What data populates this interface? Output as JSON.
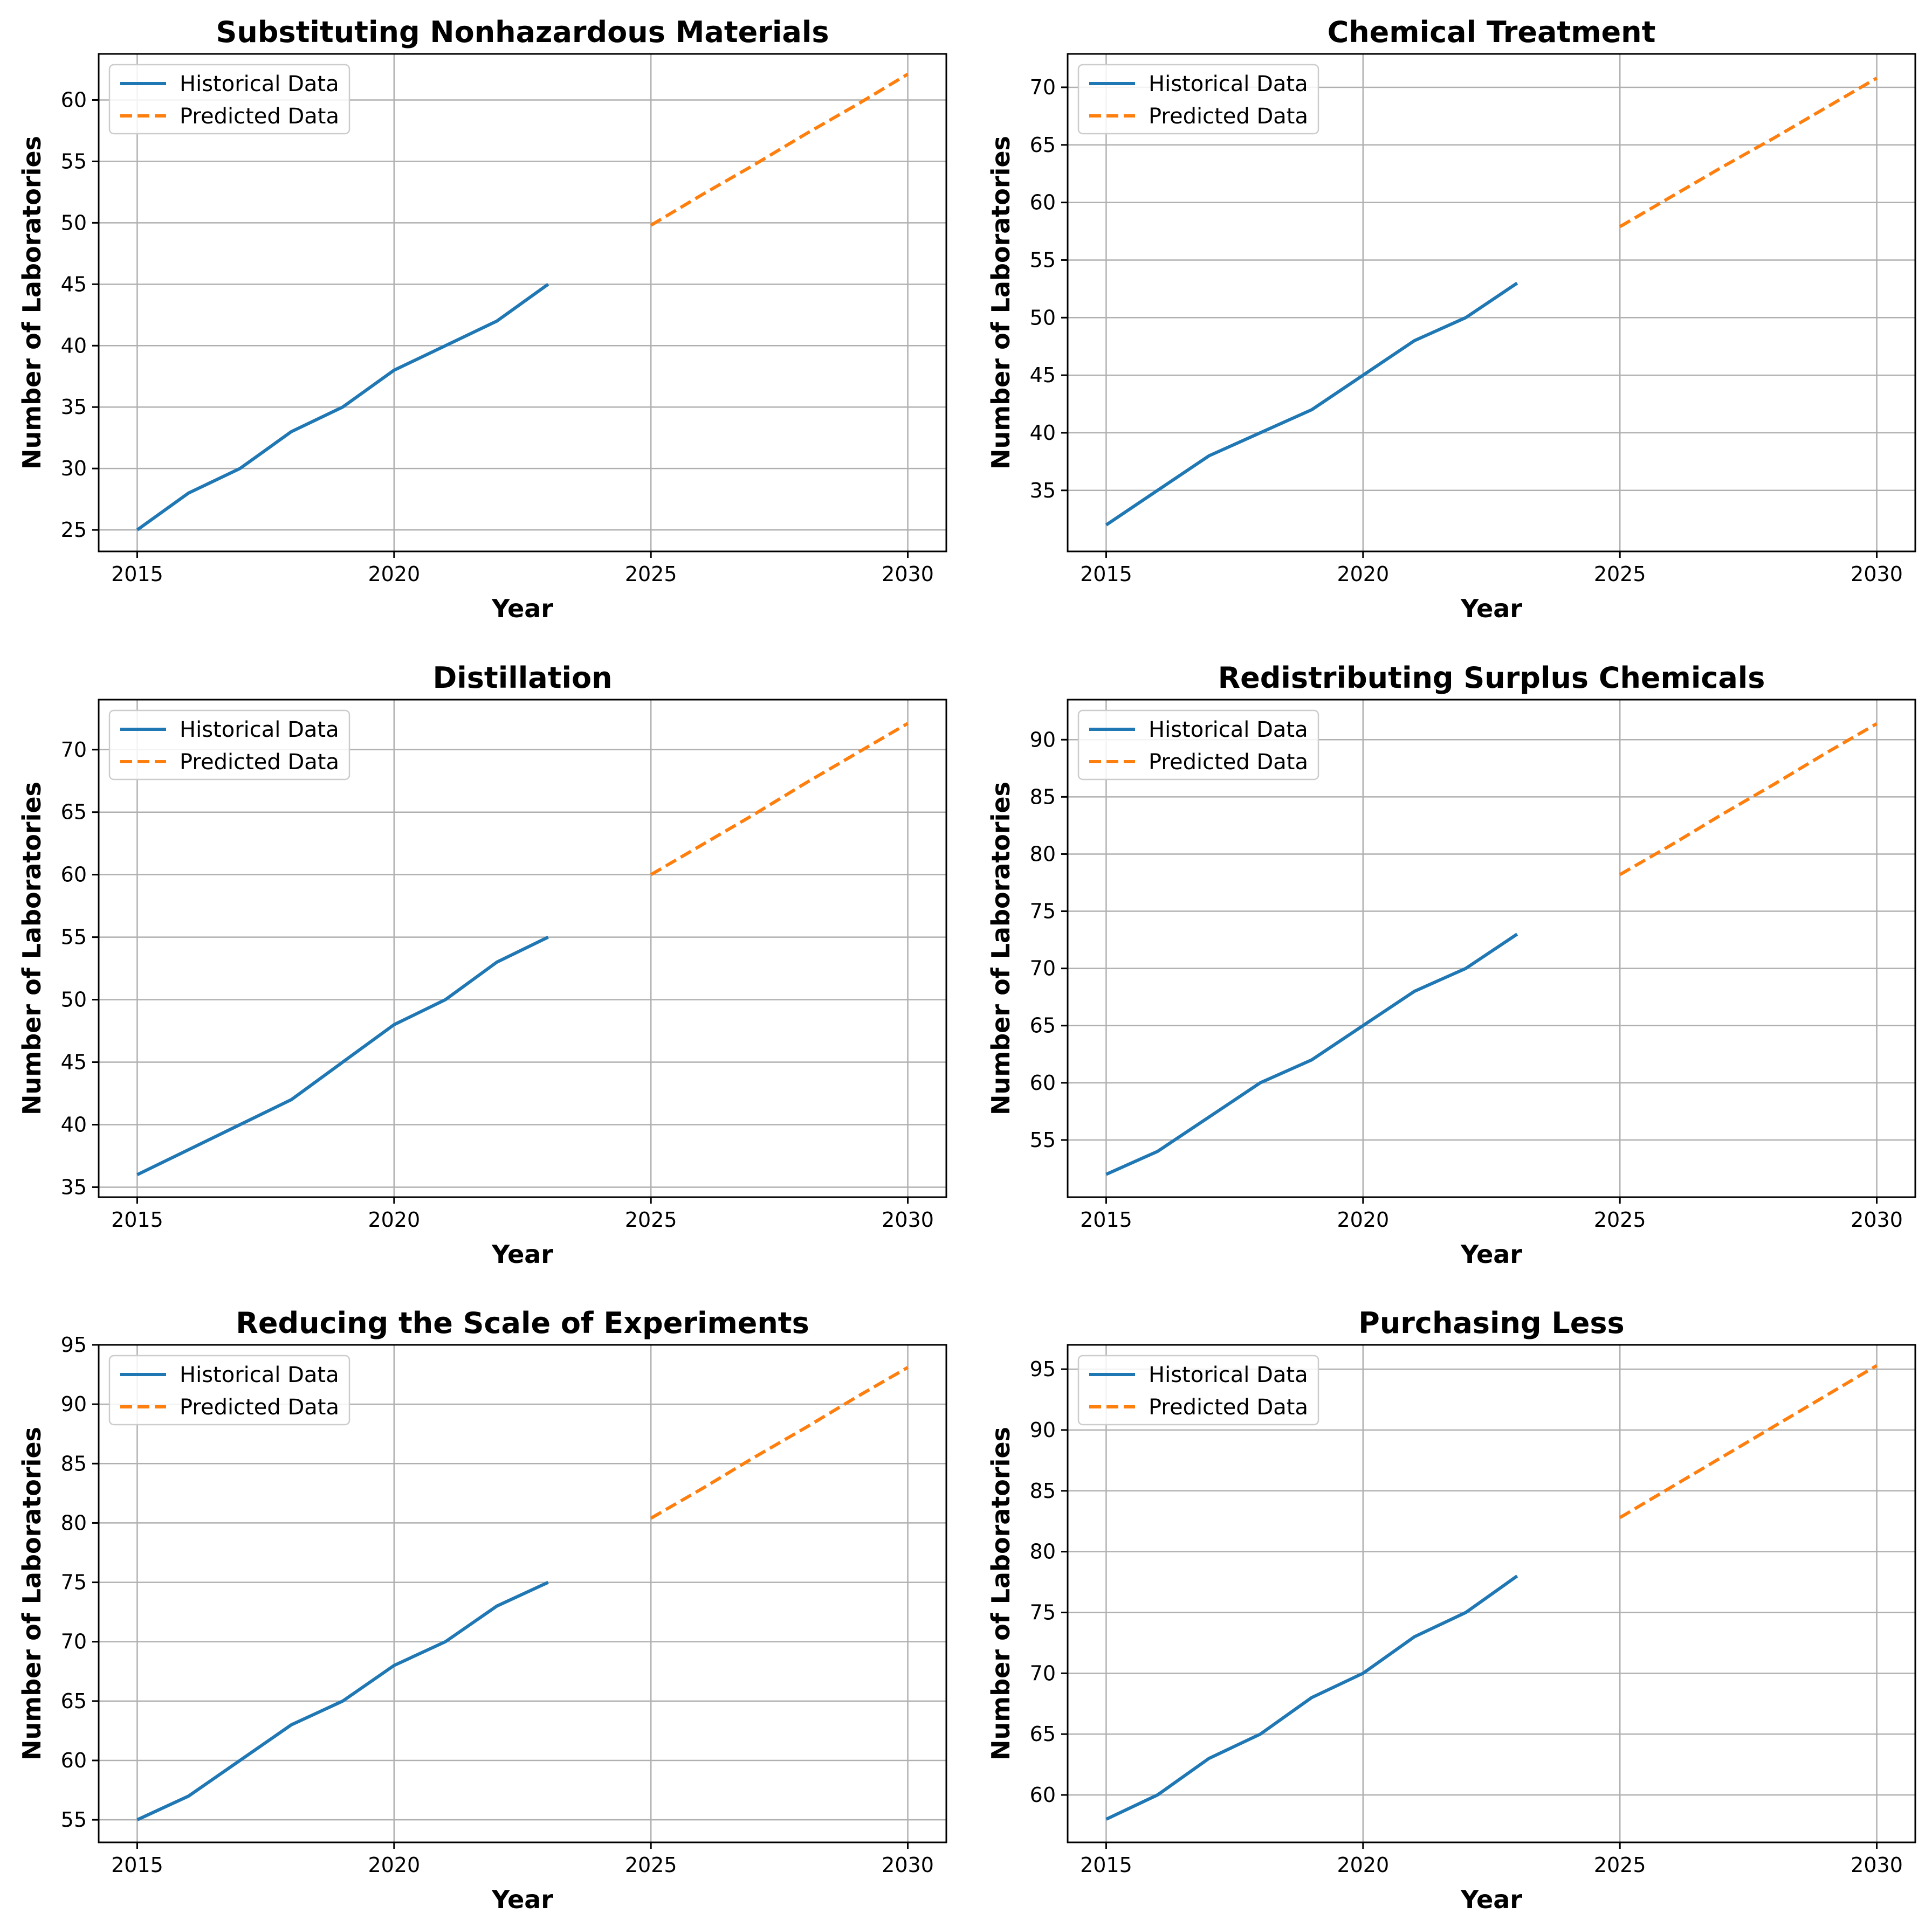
{
  "colors": {
    "historical": "#1f77b4",
    "predicted": "#ff7f0e",
    "grid": "#b0b0b0",
    "legend_border": "#cccccc"
  },
  "chart_data": [
    {
      "type": "line",
      "title": "Substituting Nonhazardous Materials",
      "xlabel": "Year",
      "ylabel": "Number of Laboratories",
      "xlim": [
        2014.25,
        2030.75
      ],
      "ylim": [
        23.25,
        63.75
      ],
      "xticks": [
        2015,
        2020,
        2025,
        2030
      ],
      "yticks": [
        25,
        30,
        35,
        40,
        45,
        50,
        55,
        60
      ],
      "grid": true,
      "legend_position": "upper-left",
      "series": [
        {
          "name": "Historical Data",
          "style": "solid",
          "x": [
            2015,
            2016,
            2017,
            2018,
            2019,
            2020,
            2021,
            2022,
            2023
          ],
          "y": [
            25,
            28,
            30,
            33,
            35,
            38,
            40,
            42,
            45
          ]
        },
        {
          "name": "Predicted Data",
          "style": "dashed",
          "x": [
            2025,
            2026,
            2027,
            2028,
            2029,
            2030
          ],
          "y": [
            49.8,
            52.3,
            54.7,
            57.2,
            59.6,
            62.1
          ]
        }
      ]
    },
    {
      "type": "line",
      "title": "Chemical Treatment",
      "xlabel": "Year",
      "ylabel": "Number of Laboratories",
      "xlim": [
        2014.25,
        2030.75
      ],
      "ylim": [
        29.7,
        72.9
      ],
      "xticks": [
        2015,
        2020,
        2025,
        2030
      ],
      "yticks": [
        35,
        40,
        45,
        50,
        55,
        60,
        65,
        70
      ],
      "grid": true,
      "legend_position": "upper-left",
      "series": [
        {
          "name": "Historical Data",
          "style": "solid",
          "x": [
            2015,
            2016,
            2017,
            2018,
            2019,
            2020,
            2021,
            2022,
            2023
          ],
          "y": [
            32,
            35,
            38,
            40,
            42,
            45,
            48,
            50,
            53
          ]
        },
        {
          "name": "Predicted Data",
          "style": "dashed",
          "x": [
            2025,
            2026,
            2027,
            2028,
            2029,
            2030
          ],
          "y": [
            57.9,
            60.5,
            63.1,
            65.6,
            68.2,
            70.8
          ]
        }
      ]
    },
    {
      "type": "line",
      "title": "Distillation",
      "xlabel": "Year",
      "ylabel": "Number of Laboratories",
      "xlim": [
        2014.25,
        2030.75
      ],
      "ylim": [
        34.2,
        74.0
      ],
      "xticks": [
        2015,
        2020,
        2025,
        2030
      ],
      "yticks": [
        35,
        40,
        45,
        50,
        55,
        60,
        65,
        70
      ],
      "grid": true,
      "legend_position": "upper-left",
      "series": [
        {
          "name": "Historical Data",
          "style": "solid",
          "x": [
            2015,
            2016,
            2017,
            2018,
            2019,
            2020,
            2021,
            2022,
            2023
          ],
          "y": [
            36,
            38,
            40,
            42,
            45,
            48,
            50,
            53,
            55
          ]
        },
        {
          "name": "Predicted Data",
          "style": "dashed",
          "x": [
            2025,
            2026,
            2027,
            2028,
            2029,
            2030
          ],
          "y": [
            60.0,
            62.4,
            64.8,
            67.3,
            69.7,
            72.1
          ]
        }
      ]
    },
    {
      "type": "line",
      "title": "Redistributing Surplus Chemicals",
      "xlabel": "Year",
      "ylabel": "Number of Laboratories",
      "xlim": [
        2014.25,
        2030.75
      ],
      "ylim": [
        50.0,
        93.5
      ],
      "xticks": [
        2015,
        2020,
        2025,
        2030
      ],
      "yticks": [
        55,
        60,
        65,
        70,
        75,
        80,
        85,
        90
      ],
      "grid": true,
      "legend_position": "upper-left",
      "series": [
        {
          "name": "Historical Data",
          "style": "solid",
          "x": [
            2015,
            2016,
            2017,
            2018,
            2019,
            2020,
            2021,
            2022,
            2023
          ],
          "y": [
            52,
            54,
            57,
            60,
            62,
            65,
            68,
            70,
            73
          ]
        },
        {
          "name": "Predicted Data",
          "style": "dashed",
          "x": [
            2025,
            2026,
            2027,
            2028,
            2029,
            2030
          ],
          "y": [
            78.2,
            80.8,
            83.5,
            86.1,
            88.8,
            91.4
          ]
        }
      ]
    },
    {
      "type": "line",
      "title": "Reducing the Scale of Experiments",
      "xlabel": "Year",
      "ylabel": "Number of Laboratories",
      "xlim": [
        2014.25,
        2030.75
      ],
      "ylim": [
        53.1,
        95.0
      ],
      "xticks": [
        2015,
        2020,
        2025,
        2030
      ],
      "yticks": [
        55,
        60,
        65,
        70,
        75,
        80,
        85,
        90,
        95
      ],
      "grid": true,
      "legend_position": "upper-left",
      "series": [
        {
          "name": "Historical Data",
          "style": "solid",
          "x": [
            2015,
            2016,
            2017,
            2018,
            2019,
            2020,
            2021,
            2022,
            2023
          ],
          "y": [
            55,
            57,
            60,
            63,
            65,
            68,
            70,
            73,
            75
          ]
        },
        {
          "name": "Predicted Data",
          "style": "dashed",
          "x": [
            2025,
            2026,
            2027,
            2028,
            2029,
            2030
          ],
          "y": [
            80.4,
            82.9,
            85.5,
            88.0,
            90.6,
            93.1
          ]
        }
      ]
    },
    {
      "type": "line",
      "title": "Purchasing Less",
      "xlabel": "Year",
      "ylabel": "Number of Laboratories",
      "xlim": [
        2014.25,
        2030.75
      ],
      "ylim": [
        56.1,
        97.0
      ],
      "xticks": [
        2015,
        2020,
        2025,
        2030
      ],
      "yticks": [
        60,
        65,
        70,
        75,
        80,
        85,
        90,
        95
      ],
      "grid": true,
      "legend_position": "upper-left",
      "series": [
        {
          "name": "Historical Data",
          "style": "solid",
          "x": [
            2015,
            2016,
            2017,
            2018,
            2019,
            2020,
            2021,
            2022,
            2023
          ],
          "y": [
            58,
            60,
            63,
            65,
            68,
            70,
            73,
            75,
            78
          ]
        },
        {
          "name": "Predicted Data",
          "style": "dashed",
          "x": [
            2025,
            2026,
            2027,
            2028,
            2029,
            2030
          ],
          "y": [
            82.8,
            85.3,
            87.8,
            90.3,
            92.8,
            95.3
          ]
        }
      ]
    }
  ]
}
